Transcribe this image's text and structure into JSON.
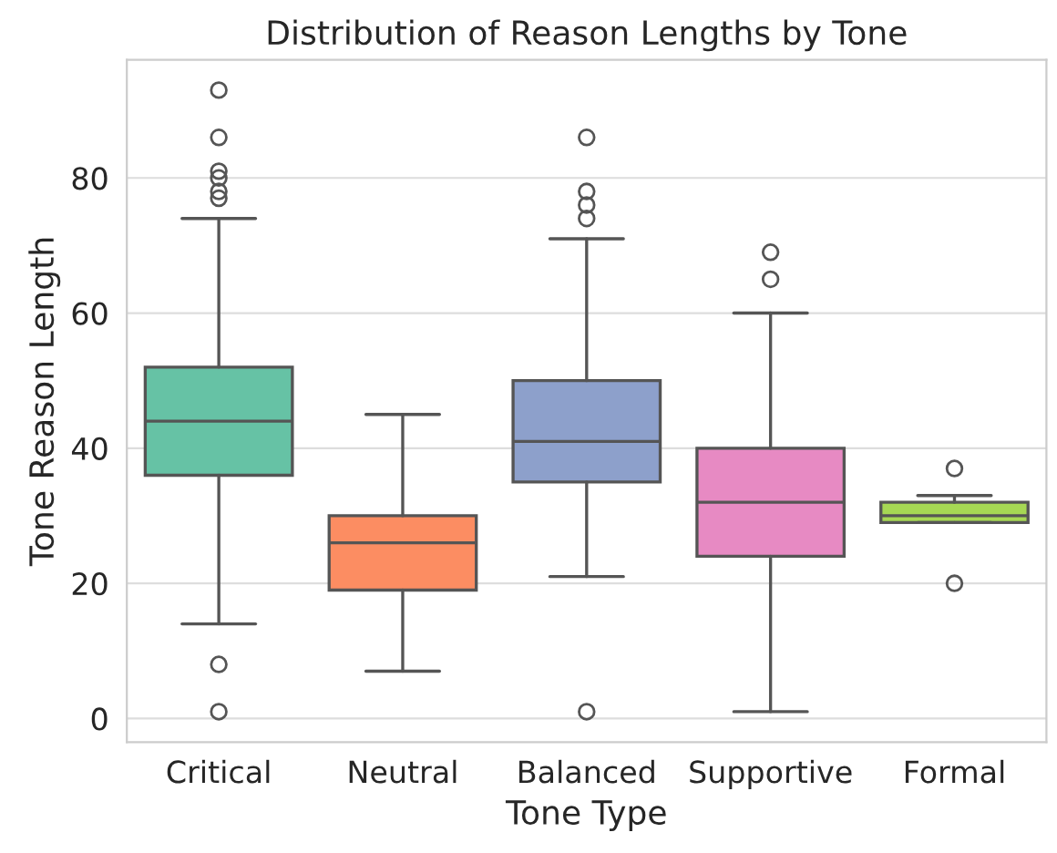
{
  "chart_data": {
    "type": "box",
    "title": "Distribution of Reason Lengths by Tone",
    "xlabel": "Tone Type",
    "ylabel": "Tone Reason Length",
    "categories": [
      "Critical",
      "Neutral",
      "Balanced",
      "Supportive",
      "Formal"
    ],
    "colors": [
      "#66c2a5",
      "#fc8d62",
      "#8da0cb",
      "#e78ac3",
      "#a6d854"
    ],
    "boxes": [
      {
        "low": 14,
        "q1": 36,
        "median": 44,
        "q3": 52,
        "high": 74,
        "outliers": [
          93,
          86,
          81,
          80,
          78,
          77,
          8,
          1
        ]
      },
      {
        "low": 7,
        "q1": 19,
        "median": 26,
        "q3": 30,
        "high": 45
      },
      {
        "low": 21,
        "q1": 35,
        "median": 41,
        "q3": 50,
        "high": 71,
        "outliers": [
          86,
          78,
          76,
          74,
          1
        ]
      },
      {
        "low": 1,
        "q1": 24,
        "median": 32,
        "q3": 40,
        "high": 60,
        "outliers": [
          69,
          65
        ]
      },
      {
        "low": 29,
        "q1": 29,
        "median": 30,
        "q3": 32,
        "high": 33,
        "outliers": [
          37,
          20
        ]
      }
    ],
    "ylim": [
      -3.5,
      97.5
    ],
    "yticks": [
      0,
      20,
      40,
      60,
      80
    ],
    "grid": "y",
    "legend": false
  }
}
